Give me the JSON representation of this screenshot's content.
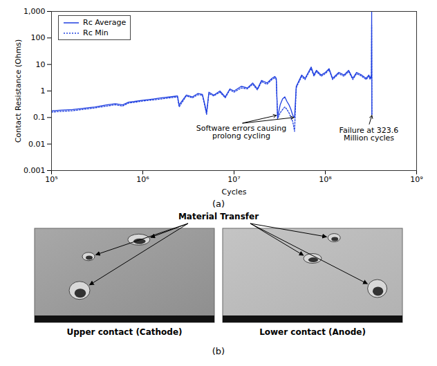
{
  "chart_data": {
    "type": "line",
    "x_label": "Cycles",
    "y_label": "Contact Resistance (Ohms)",
    "log": true,
    "grid": false,
    "legend": "upper left",
    "xlim": [
      100000,
      1000000000
    ],
    "ylim": [
      0.001,
      1000
    ],
    "xticks": [
      {
        "value": 100000,
        "label": "10⁵"
      },
      {
        "value": 1000000,
        "label": "10⁶"
      },
      {
        "value": 10000000,
        "label": "10⁷"
      },
      {
        "value": 100000000,
        "label": "10⁸"
      },
      {
        "value": 1000000000,
        "label": "10⁹"
      }
    ],
    "yticks": [
      0.001,
      0.01,
      0.1,
      1,
      10,
      100,
      {
        "value": 1000,
        "label": "1,000"
      }
    ],
    "x": [
      100000,
      130000,
      170000,
      220000,
      300000,
      400000,
      500000,
      600000,
      700000,
      800000,
      1000000,
      1300000,
      1600000,
      2000000,
      2400000,
      2500000,
      3000000,
      3500000,
      4000000,
      4500000,
      4800000,
      5000000,
      5300000,
      6000000,
      7000000,
      8000000,
      9000000,
      10000000,
      12000000,
      14000000,
      16000000,
      18000000,
      20000000,
      23000000,
      26000000,
      28000000,
      29000000,
      30000000,
      32000000,
      34000000,
      36000000,
      38000000,
      40000000,
      42000000,
      44000000,
      46000000,
      48000000,
      50000000,
      55000000,
      60000000,
      65000000,
      70000000,
      75000000,
      80000000,
      90000000,
      100000000,
      110000000,
      120000000,
      140000000,
      160000000,
      180000000,
      200000000,
      220000000,
      250000000,
      280000000,
      300000000,
      310000000,
      320000000,
      322000000,
      323600000
    ],
    "series": [
      {
        "name": "Rc Average",
        "color": "#1f3fe0",
        "line_style": "solid",
        "values": [
          0.18,
          0.19,
          0.2,
          0.22,
          0.25,
          0.3,
          0.33,
          0.3,
          0.38,
          0.4,
          0.45,
          0.5,
          0.55,
          0.6,
          0.65,
          0.3,
          0.7,
          0.6,
          0.8,
          0.75,
          0.3,
          0.15,
          0.9,
          0.7,
          1.0,
          0.6,
          1.2,
          1.0,
          1.5,
          1.3,
          2,
          1.2,
          2.5,
          2,
          3,
          3.5,
          3,
          0.1,
          0.3,
          0.5,
          0.6,
          0.4,
          0.3,
          0.2,
          0.12,
          0.1,
          1.5,
          2,
          4,
          3,
          5,
          8,
          4,
          6,
          4,
          5,
          7,
          3,
          5,
          4,
          6,
          3,
          5,
          4,
          3,
          4,
          3,
          4,
          1000,
          0.13
        ]
      },
      {
        "name": "Rc Min",
        "color": "#1f3fe0",
        "line_style": "dotted",
        "values": [
          0.16,
          0.17,
          0.18,
          0.2,
          0.23,
          0.27,
          0.3,
          0.27,
          0.35,
          0.37,
          0.42,
          0.46,
          0.5,
          0.55,
          0.6,
          0.25,
          0.65,
          0.55,
          0.72,
          0.7,
          0.25,
          0.13,
          0.8,
          0.65,
          0.9,
          0.55,
          1.1,
          0.9,
          1.3,
          1.2,
          1.8,
          1.1,
          2.2,
          1.8,
          2.7,
          3.1,
          2.7,
          0.09,
          0.15,
          0.2,
          0.25,
          0.2,
          0.15,
          0.1,
          0.07,
          0.03,
          1.3,
          1.8,
          3.5,
          2.7,
          4.5,
          7,
          3.6,
          5.4,
          3.6,
          4.5,
          6.3,
          2.7,
          4.5,
          3.6,
          5.4,
          2.7,
          4.5,
          3.6,
          2.7,
          3.6,
          2.7,
          3.6,
          300,
          0.12
        ]
      }
    ],
    "annotations": [
      {
        "text": "Software errors causing\nprolong cycling",
        "x": 12000000,
        "y": 0.06,
        "arrows": [
          [
            29000000,
            0.12
          ],
          [
            45000000,
            0.1
          ]
        ]
      },
      {
        "text": "Failure at 323.6\nMillion cycles",
        "x": 300000000,
        "y": 0.05,
        "arrows": [
          [
            323600000,
            0.12
          ]
        ]
      }
    ]
  },
  "panel_labels": [
    "(a)",
    "(b)"
  ],
  "sem_panel": {
    "annotation": "Material Transfer",
    "images": [
      "Upper contact (Cathode)",
      "Lower contact (Anode)"
    ]
  }
}
